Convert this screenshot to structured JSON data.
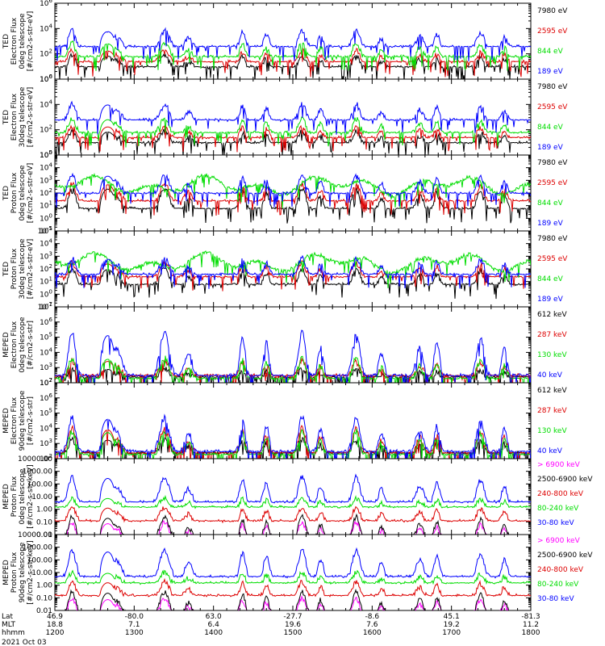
{
  "colors": {
    "black": "#000000",
    "red": "#dd0000",
    "green": "#00dd00",
    "blue": "#0000ff",
    "magenta": "#ff00ff"
  },
  "chart_data": [
    {
      "type": "line",
      "ylabel": [
        "TED",
        "Electron Flux",
        "0deg telescope",
        "[#/cm2-s-str-eV]"
      ],
      "ylog": true,
      "ylim_exp": [
        0,
        6
      ],
      "tick_labels": [
        "10^0",
        "10^2",
        "10^4",
        "10^6"
      ],
      "tick_exps": [
        0,
        2,
        4,
        6
      ],
      "legend": [
        "7980 eV",
        "2595 eV",
        "844 eV",
        "189 eV"
      ],
      "legend_colors": [
        "black",
        "red",
        "green",
        "blue"
      ],
      "series": [
        {
          "name": "7980 eV",
          "color": "black",
          "base": 0.8,
          "peak": 2.0
        },
        {
          "name": "2595 eV",
          "color": "red",
          "base": 1.2,
          "peak": 2.4
        },
        {
          "name": "844 eV",
          "color": "green",
          "base": 1.6,
          "peak": 3.0
        },
        {
          "name": "189 eV",
          "color": "blue",
          "base": 2.4,
          "peak": 4.0
        }
      ]
    },
    {
      "type": "line",
      "ylabel": [
        "TED",
        "Electron Flux",
        "30deg telescope",
        "[#/cm2-s-str-eV]"
      ],
      "ylog": true,
      "ylim_exp": [
        0,
        6
      ],
      "tick_labels": [
        "10^0",
        "10^2",
        "10^4",
        "10^6"
      ],
      "tick_exps": [
        0,
        2,
        4,
        6
      ],
      "legend": [
        "7980 eV",
        "2595 eV",
        "844 eV",
        "189 eV"
      ],
      "legend_colors": [
        "black",
        "red",
        "green",
        "blue"
      ],
      "series": [
        {
          "name": "7980 eV",
          "color": "black",
          "base": 0.8,
          "peak": 2.0
        },
        {
          "name": "2595 eV",
          "color": "red",
          "base": 1.2,
          "peak": 2.4
        },
        {
          "name": "844 eV",
          "color": "green",
          "base": 1.6,
          "peak": 3.0
        },
        {
          "name": "189 eV",
          "color": "blue",
          "base": 2.6,
          "peak": 4.2
        }
      ]
    },
    {
      "type": "line",
      "ylabel": [
        "TED",
        "Proton Flux",
        "0deg telescope",
        "[#/cm2-s-str-eV]"
      ],
      "ylog": true,
      "ylim_exp": [
        -1,
        5
      ],
      "tick_labels": [
        "10^-1",
        "10^0",
        "10^1",
        "10^2",
        "10^3",
        "10^4",
        "10^5"
      ],
      "tick_exps": [
        -1,
        0,
        1,
        2,
        3,
        4,
        5
      ],
      "legend": [
        "7980 eV",
        "2595 eV",
        "844 eV",
        "189 eV"
      ],
      "legend_colors": [
        "black",
        "red",
        "green",
        "blue"
      ],
      "series": [
        {
          "name": "7980 eV",
          "color": "black",
          "base": 0.6,
          "peak": 2.6
        },
        {
          "name": "2595 eV",
          "color": "red",
          "base": 1.2,
          "peak": 2.9
        },
        {
          "name": "844 eV",
          "color": "green",
          "base": 2.0,
          "peak": 3.4
        },
        {
          "name": "189 eV",
          "color": "blue",
          "base": 1.8,
          "peak": 3.6
        }
      ]
    },
    {
      "type": "line",
      "ylabel": [
        "TED",
        "Proton Flux",
        "30deg telescope",
        "[#/cm2-s-str-eV]"
      ],
      "ylog": true,
      "ylim_exp": [
        -1,
        5
      ],
      "tick_labels": [
        "10^-1",
        "10^0",
        "10^1",
        "10^2",
        "10^3",
        "10^4",
        "10^5"
      ],
      "tick_exps": [
        -1,
        0,
        1,
        2,
        3,
        4,
        5
      ],
      "legend": [
        "7980 eV",
        "2595 eV",
        "844 eV",
        "189 eV"
      ],
      "legend_colors": [
        "black",
        "red",
        "green",
        "blue"
      ],
      "series": [
        {
          "name": "7980 eV",
          "color": "black",
          "base": 0.6,
          "peak": 2.2
        },
        {
          "name": "2595 eV",
          "color": "red",
          "base": 1.2,
          "peak": 2.6
        },
        {
          "name": "844 eV",
          "color": "green",
          "base": 1.9,
          "peak": 3.0
        },
        {
          "name": "189 eV",
          "color": "blue",
          "base": 1.4,
          "peak": 3.0
        }
      ]
    },
    {
      "type": "line",
      "ylabel": [
        "MEPED",
        "Electron Flux",
        "0deg telescope",
        "[#/cm2-s-str]"
      ],
      "ylog": true,
      "ylim_exp": [
        2,
        7
      ],
      "tick_labels": [
        "10^2",
        "10^3",
        "10^4",
        "10^5",
        "10^6",
        "10^7"
      ],
      "tick_exps": [
        2,
        3,
        4,
        5,
        6,
        7
      ],
      "legend": [
        "612 keV",
        "287 keV",
        "130 keV",
        "40 keV"
      ],
      "legend_colors": [
        "black",
        "red",
        "green",
        "blue"
      ],
      "series": [
        {
          "name": "612 keV",
          "color": "black",
          "base": 2.2,
          "peak": 3.0
        },
        {
          "name": "287 keV",
          "color": "red",
          "base": 2.3,
          "peak": 3.6
        },
        {
          "name": "130 keV",
          "color": "green",
          "base": 2.1,
          "peak": 3.8
        },
        {
          "name": "40 keV",
          "color": "blue",
          "base": 2.3,
          "peak": 5.6
        }
      ]
    },
    {
      "type": "line",
      "ylabel": [
        "MEPED",
        "Electron Flux",
        "90deg telescope",
        "[#/cm2-s-str]"
      ],
      "ylog": true,
      "ylim_exp": [
        2,
        7
      ],
      "tick_labels": [
        "10^2",
        "10^3",
        "10^4",
        "10^5",
        "10^6",
        "10^7"
      ],
      "tick_exps": [
        2,
        3,
        4,
        5,
        6,
        7
      ],
      "legend": [
        "612 keV",
        "287 keV",
        "130 keV",
        "40 keV"
      ],
      "legend_colors": [
        "black",
        "red",
        "green",
        "blue"
      ],
      "series": [
        {
          "name": "612 keV",
          "color": "black",
          "base": 2.2,
          "peak": 3.4
        },
        {
          "name": "287 keV",
          "color": "red",
          "base": 2.2,
          "peak": 4.2
        },
        {
          "name": "130 keV",
          "color": "green",
          "base": 2.1,
          "peak": 4.0
        },
        {
          "name": "40 keV",
          "color": "blue",
          "base": 2.3,
          "peak": 5.0
        }
      ]
    },
    {
      "type": "line",
      "ylabel": [
        "MEPED",
        "Proton Flux",
        "0deg telescope",
        "[#/cm2-s-str-keV]"
      ],
      "ylog": true,
      "ylim_exp": [
        -2,
        4
      ],
      "tick_labels": [
        "0.01",
        "0.10",
        "1.00",
        "10.00",
        "100.00",
        "1000.00",
        "10000.00"
      ],
      "tick_exps": [
        -2,
        -1,
        0,
        1,
        2,
        3,
        4
      ],
      "legend": [
        "> 6900 keV",
        "2500-6900 keV",
        "240-800 keV",
        "80-240 keV",
        "30-80 keV"
      ],
      "legend_colors": [
        "magenta",
        "black",
        "red",
        "green",
        "blue"
      ],
      "series": [
        {
          "name": "> 6900 keV",
          "color": "magenta",
          "base": -2.5,
          "peak": -0.9
        },
        {
          "name": "2500-6900 keV",
          "color": "black",
          "base": -2.5,
          "peak": -0.4
        },
        {
          "name": "240-800 keV",
          "color": "red",
          "base": -1.1,
          "peak": 0.3
        },
        {
          "name": "80-240 keV",
          "color": "green",
          "base": 0.0,
          "peak": 1.0
        },
        {
          "name": "30-80 keV",
          "color": "blue",
          "base": 0.4,
          "peak": 2.8
        }
      ]
    },
    {
      "type": "line",
      "ylabel": [
        "MEPED",
        "Proton Flux",
        "90deg telescope",
        "[#/cm2-s-str-keV]"
      ],
      "ylog": true,
      "ylim_exp": [
        -2,
        4
      ],
      "tick_labels": [
        "0.01",
        "0.10",
        "1.00",
        "10.00",
        "100.00",
        "1000.00",
        "10000.00"
      ],
      "tick_exps": [
        -2,
        -1,
        0,
        1,
        2,
        3,
        4
      ],
      "legend": [
        "> 6900 keV",
        "2500-6900 keV",
        "240-800 keV",
        "80-240 keV",
        "30-80 keV"
      ],
      "legend_colors": [
        "magenta",
        "black",
        "red",
        "green",
        "blue"
      ],
      "series": [
        {
          "name": "> 6900 keV",
          "color": "magenta",
          "base": -2.5,
          "peak": -0.9
        },
        {
          "name": "2500-6900 keV",
          "color": "black",
          "base": -2.5,
          "peak": -0.3
        },
        {
          "name": "240-800 keV",
          "color": "red",
          "base": -1.0,
          "peak": 0.4
        },
        {
          "name": "80-240 keV",
          "color": "green",
          "base": 0.0,
          "peak": 1.1
        },
        {
          "name": "30-80 keV",
          "color": "blue",
          "base": 0.5,
          "peak": 3.0
        }
      ]
    }
  ],
  "x_axis": {
    "rows": [
      {
        "label": "Lat",
        "values": [
          "46.9",
          "-80.0",
          "63.0",
          "-27.7",
          "-8.6",
          "45.1",
          "-81.3"
        ]
      },
      {
        "label": "MLT",
        "values": [
          "18.8",
          "7.1",
          "6.4",
          "19.6",
          "7.6",
          "19.2",
          "11.2"
        ]
      },
      {
        "label": "hhmm",
        "values": [
          "1200",
          "1300",
          "1400",
          "1500",
          "1600",
          "1700",
          "1800"
        ]
      }
    ],
    "date": "2021 Oct 03",
    "time_range_min": [
      720,
      1080
    ]
  }
}
